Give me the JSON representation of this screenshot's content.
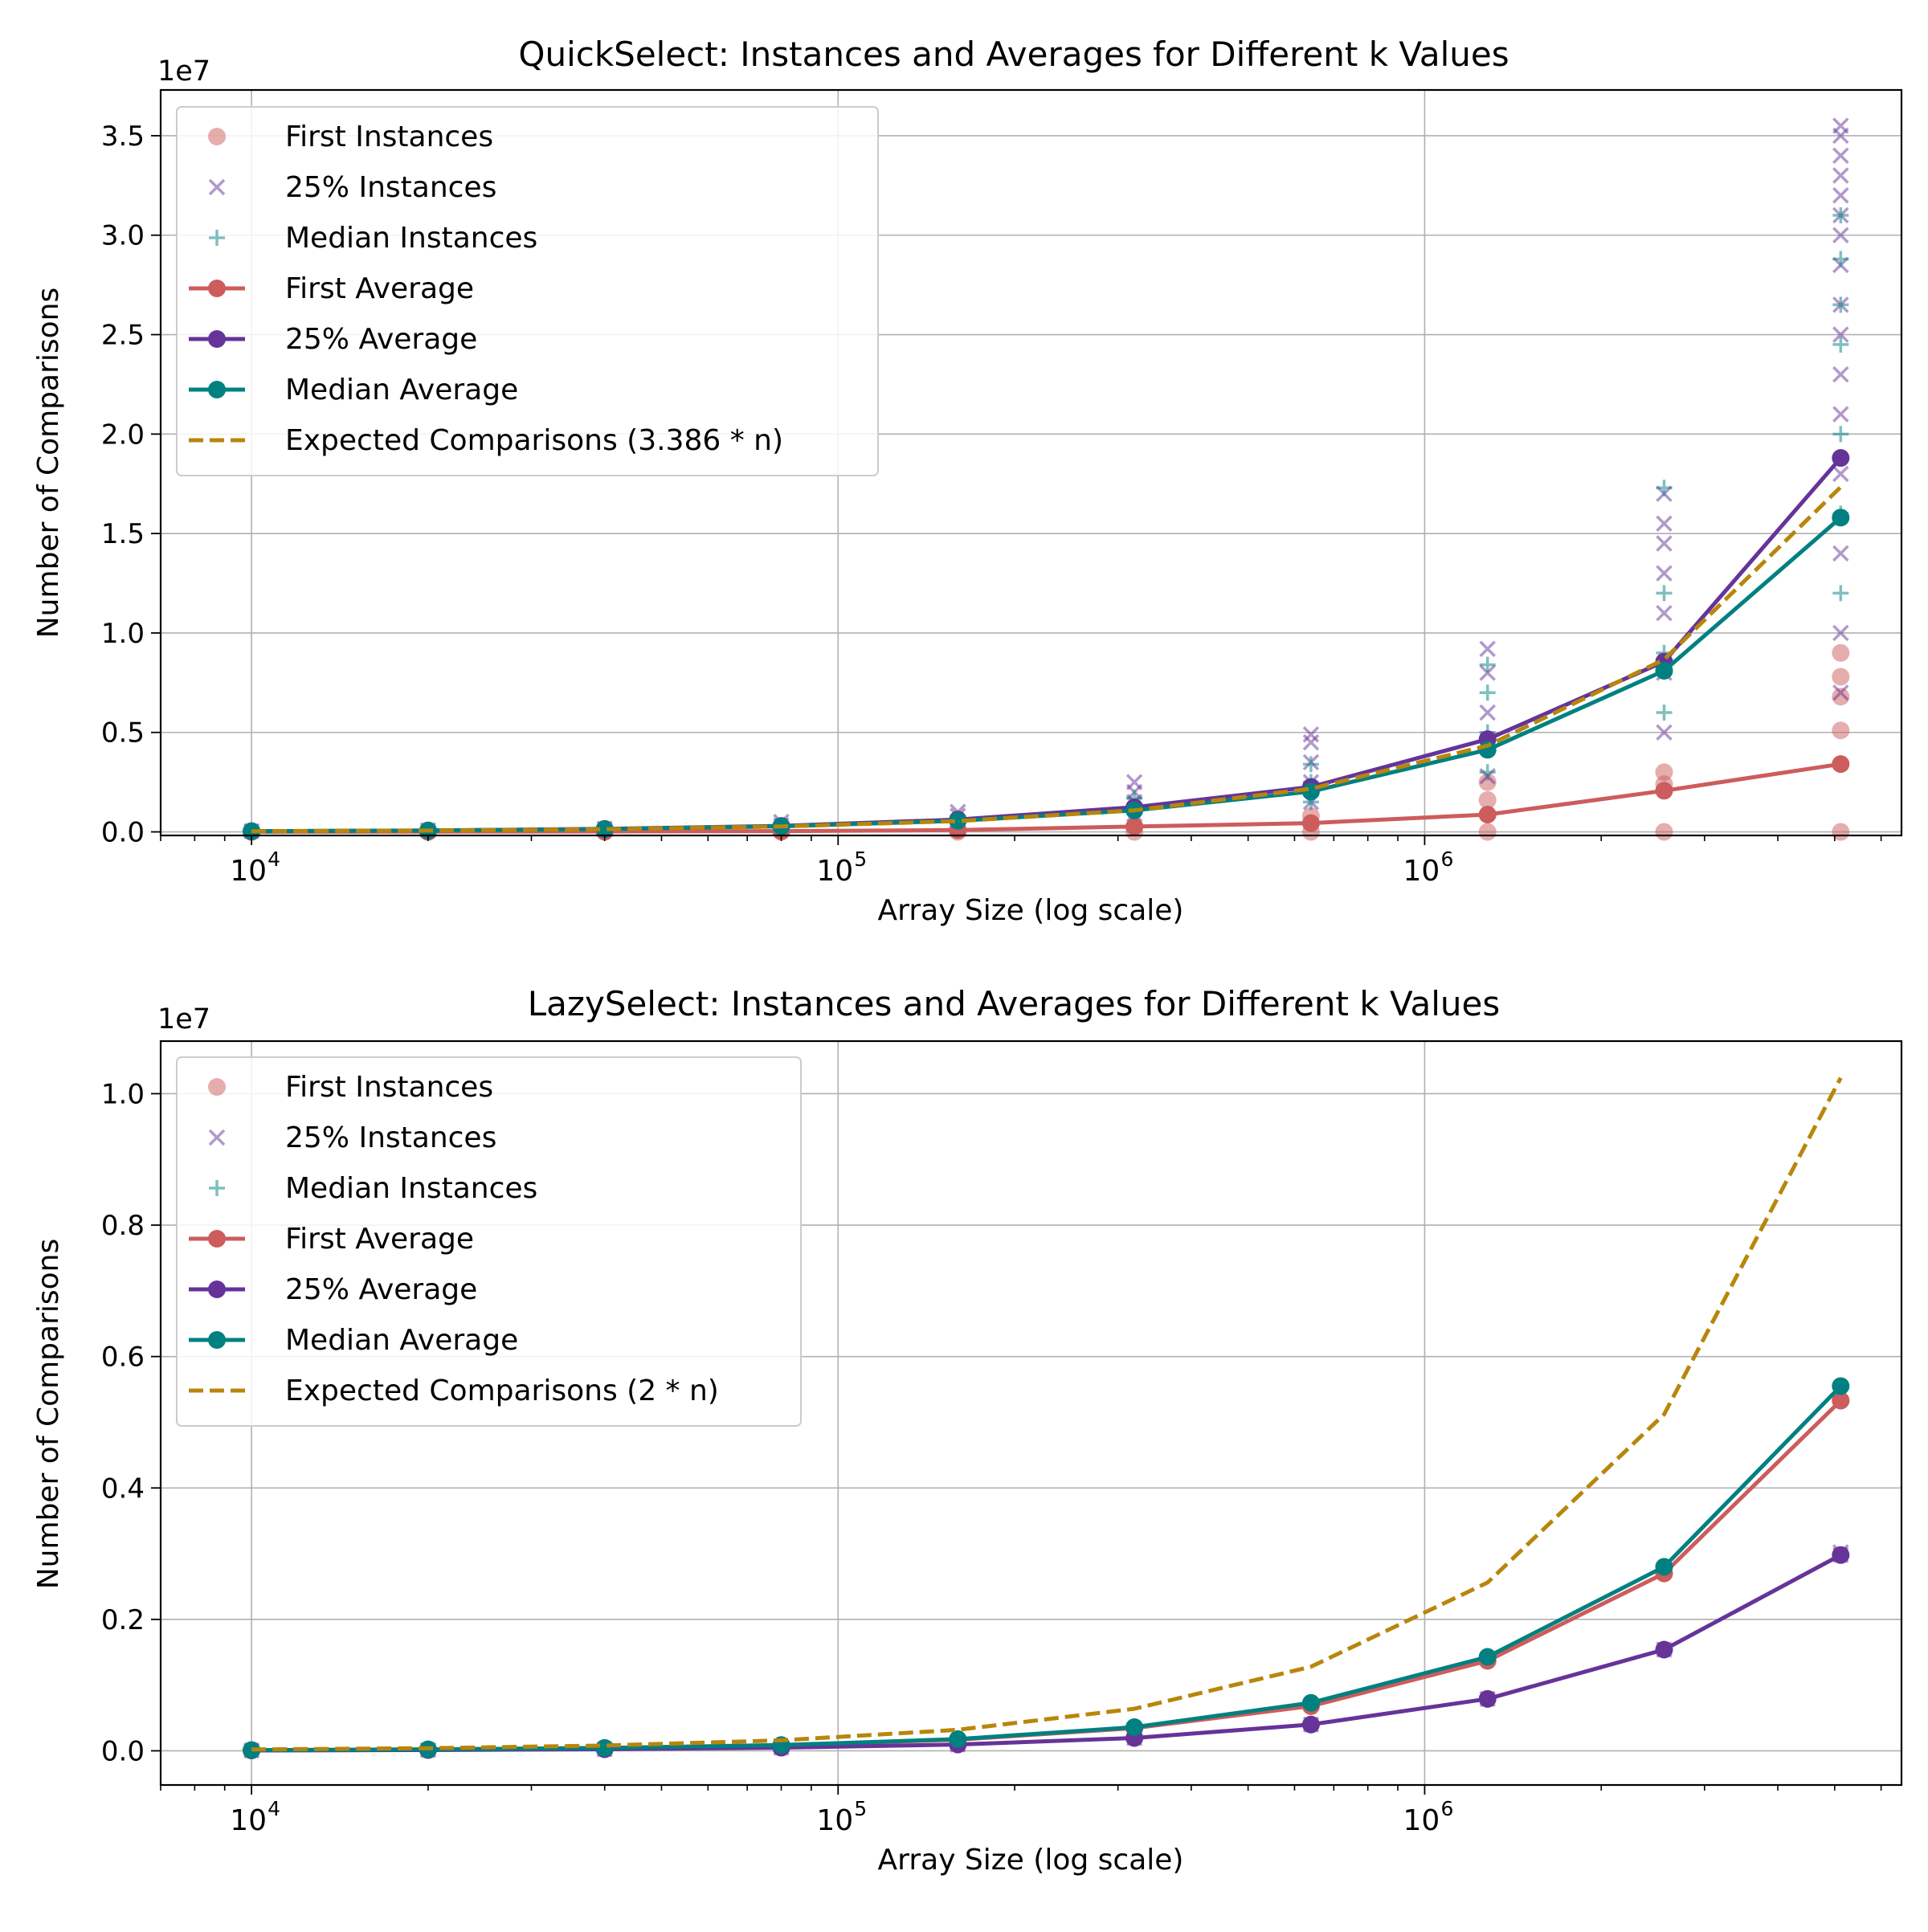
{
  "chart_data": [
    {
      "type": "line",
      "title": "QuickSelect: Instances and Averages for Different k Values",
      "xlabel": "Array Size (log scale)",
      "ylabel": "Number of Comparisons",
      "offset_label": "1e7",
      "xscale": "log",
      "xlim": [
        7000,
        6500000
      ],
      "ylim": [
        -180000,
        37300000
      ],
      "x_ticks": [
        {
          "value": 10000,
          "base": "10",
          "exp": "4"
        },
        {
          "value": 100000,
          "base": "10",
          "exp": "5"
        },
        {
          "value": 1000000,
          "base": "10",
          "exp": "6"
        }
      ],
      "y_ticks": [
        {
          "value": 0,
          "label": "0.0"
        },
        {
          "value": 5000000,
          "label": "0.5"
        },
        {
          "value": 10000000,
          "label": "1.0"
        },
        {
          "value": 15000000,
          "label": "1.5"
        },
        {
          "value": 20000000,
          "label": "2.0"
        },
        {
          "value": 25000000,
          "label": "2.5"
        },
        {
          "value": 30000000,
          "label": "3.0"
        },
        {
          "value": 35000000,
          "label": "3.5"
        }
      ],
      "grid": true,
      "legend_position": "upper-left",
      "x": [
        10000,
        20000,
        40000,
        80000,
        160000,
        320000,
        640000,
        1280000,
        2560000,
        5120000
      ],
      "series": [
        {
          "name": "First Average",
          "color": "#cd5c5c",
          "style": "solid",
          "marker": "circle",
          "values": [
            5000,
            10000,
            20000,
            40000,
            90000,
            270000,
            440000,
            870000,
            2070000,
            3410000
          ]
        },
        {
          "name": "25% Average",
          "color": "#663399",
          "style": "solid",
          "marker": "circle",
          "values": [
            36000,
            72000,
            150000,
            300000,
            620000,
            1240000,
            2260000,
            4660000,
            8560000,
            18800000
          ]
        },
        {
          "name": "Median Average",
          "color": "#008080",
          "style": "solid",
          "marker": "circle",
          "values": [
            34000,
            68000,
            140000,
            280000,
            560000,
            1080000,
            2030000,
            4130000,
            8100000,
            15800000
          ]
        },
        {
          "name": "Expected Comparisons (3.386 * n)",
          "color": "#b8860b",
          "style": "dashed",
          "marker": "none",
          "values": [
            33860,
            67720,
            135440,
            270880,
            541760,
            1083520,
            2167040,
            4334080,
            8668160,
            17336320
          ]
        }
      ],
      "instances": [
        {
          "name": "First Instances",
          "color": "#cd5c5c",
          "marker": "circle",
          "points": [
            [
              10000,
              0
            ],
            [
              20000,
              0
            ],
            [
              40000,
              0
            ],
            [
              80000,
              0
            ],
            [
              160000,
              0
            ],
            [
              320000,
              0
            ],
            [
              640000,
              0
            ],
            [
              640000,
              800000
            ],
            [
              1280000,
              0
            ],
            [
              1280000,
              1600000
            ],
            [
              1280000,
              2500000
            ],
            [
              2560000,
              0
            ],
            [
              2560000,
              2400000
            ],
            [
              2560000,
              3000000
            ],
            [
              5120000,
              0
            ],
            [
              5120000,
              5100000
            ],
            [
              5120000,
              6800000
            ],
            [
              5120000,
              7800000
            ],
            [
              5120000,
              9000000
            ]
          ]
        },
        {
          "name": "25% Instances",
          "color": "#663399",
          "marker": "x",
          "points": [
            [
              10000,
              40000
            ],
            [
              20000,
              80000
            ],
            [
              40000,
              160000
            ],
            [
              80000,
              320000
            ],
            [
              80000,
              500000
            ],
            [
              160000,
              500000
            ],
            [
              160000,
              800000
            ],
            [
              160000,
              1000000
            ],
            [
              320000,
              900000
            ],
            [
              320000,
              1500000
            ],
            [
              320000,
              2000000
            ],
            [
              320000,
              2500000
            ],
            [
              640000,
              1500000
            ],
            [
              640000,
              2500000
            ],
            [
              640000,
              3500000
            ],
            [
              640000,
              4500000
            ],
            [
              640000,
              4900000
            ],
            [
              1280000,
              2800000
            ],
            [
              1280000,
              4500000
            ],
            [
              1280000,
              6000000
            ],
            [
              1280000,
              8000000
            ],
            [
              1280000,
              9200000
            ],
            [
              2560000,
              5000000
            ],
            [
              2560000,
              8000000
            ],
            [
              2560000,
              11000000
            ],
            [
              2560000,
              13000000
            ],
            [
              2560000,
              14500000
            ],
            [
              2560000,
              15500000
            ],
            [
              2560000,
              17000000
            ],
            [
              5120000,
              7000000
            ],
            [
              5120000,
              10000000
            ],
            [
              5120000,
              14000000
            ],
            [
              5120000,
              18000000
            ],
            [
              5120000,
              21000000
            ],
            [
              5120000,
              23000000
            ],
            [
              5120000,
              25000000
            ],
            [
              5120000,
              26500000
            ],
            [
              5120000,
              28500000
            ],
            [
              5120000,
              30000000
            ],
            [
              5120000,
              31000000
            ],
            [
              5120000,
              32000000
            ],
            [
              5120000,
              33000000
            ],
            [
              5120000,
              34000000
            ],
            [
              5120000,
              35000000
            ],
            [
              5120000,
              35500000
            ]
          ]
        },
        {
          "name": "Median Instances",
          "color": "#008080",
          "marker": "plus",
          "points": [
            [
              10000,
              35000
            ],
            [
              20000,
              70000
            ],
            [
              40000,
              140000
            ],
            [
              80000,
              280000
            ],
            [
              160000,
              560000
            ],
            [
              320000,
              1100000
            ],
            [
              320000,
              1700000
            ],
            [
              640000,
              1500000
            ],
            [
              640000,
              2500000
            ],
            [
              640000,
              3400000
            ],
            [
              1280000,
              3000000
            ],
            [
              1280000,
              5000000
            ],
            [
              1280000,
              7000000
            ],
            [
              1280000,
              8400000
            ],
            [
              2560000,
              6000000
            ],
            [
              2560000,
              9000000
            ],
            [
              2560000,
              12000000
            ],
            [
              2560000,
              17300000
            ],
            [
              5120000,
              12000000
            ],
            [
              5120000,
              16000000
            ],
            [
              5120000,
              20000000
            ],
            [
              5120000,
              24500000
            ],
            [
              5120000,
              26500000
            ],
            [
              5120000,
              28800000
            ],
            [
              5120000,
              31000000
            ]
          ]
        }
      ],
      "legend": [
        {
          "label": "First Instances",
          "kind": "scatter-circle",
          "color": "#cd5c5c"
        },
        {
          "label": "25% Instances",
          "kind": "scatter-x",
          "color": "#663399"
        },
        {
          "label": "Median Instances",
          "kind": "scatter-plus",
          "color": "#008080"
        },
        {
          "label": "First Average",
          "kind": "line-marker",
          "color": "#cd5c5c"
        },
        {
          "label": "25% Average",
          "kind": "line-marker",
          "color": "#663399"
        },
        {
          "label": "Median Average",
          "kind": "line-marker",
          "color": "#008080"
        },
        {
          "label": "Expected Comparisons (3.386 * n)",
          "kind": "dashed",
          "color": "#b8860b"
        }
      ]
    },
    {
      "type": "line",
      "title": "LazySelect: Instances and Averages for Different k Values",
      "xlabel": "Array Size (log scale)",
      "ylabel": "Number of Comparisons",
      "offset_label": "1e7",
      "xscale": "log",
      "xlim": [
        7000,
        6500000
      ],
      "ylim": [
        -520000,
        10800000
      ],
      "x_ticks": [
        {
          "value": 10000,
          "base": "10",
          "exp": "4"
        },
        {
          "value": 100000,
          "base": "10",
          "exp": "5"
        },
        {
          "value": 1000000,
          "base": "10",
          "exp": "6"
        }
      ],
      "y_ticks": [
        {
          "value": 0,
          "label": "0.0"
        },
        {
          "value": 2000000,
          "label": "0.2"
        },
        {
          "value": 4000000,
          "label": "0.4"
        },
        {
          "value": 6000000,
          "label": "0.6"
        },
        {
          "value": 8000000,
          "label": "0.8"
        },
        {
          "value": 10000000,
          "label": "1.0"
        }
      ],
      "grid": true,
      "legend_position": "upper-left",
      "x": [
        10000,
        20000,
        40000,
        80000,
        160000,
        320000,
        640000,
        1280000,
        2560000,
        5120000
      ],
      "series": [
        {
          "name": "First Average",
          "color": "#cd5c5c",
          "style": "solid",
          "marker": "circle",
          "values": [
            10000,
            21000,
            42000,
            85000,
            170000,
            345000,
            680000,
            1370000,
            2700000,
            5330000
          ]
        },
        {
          "name": "25% Average",
          "color": "#663399",
          "style": "solid",
          "marker": "circle",
          "values": [
            6000,
            12000,
            24000,
            48000,
            96000,
            195000,
            400000,
            790000,
            1540000,
            2980000
          ]
        },
        {
          "name": "Median Average",
          "color": "#008080",
          "style": "solid",
          "marker": "circle",
          "values": [
            11000,
            22000,
            44000,
            88000,
            178000,
            360000,
            730000,
            1430000,
            2800000,
            5550000
          ]
        },
        {
          "name": "Expected Comparisons (2 * n)",
          "color": "#b8860b",
          "style": "dashed",
          "marker": "none",
          "values": [
            20000,
            40000,
            80000,
            160000,
            320000,
            640000,
            1280000,
            2560000,
            5120000,
            10240000
          ]
        }
      ],
      "instances": [
        {
          "name": "First Instances",
          "color": "#cd5c5c",
          "marker": "circle",
          "points": [
            [
              10000,
              10000
            ],
            [
              20000,
              21000
            ],
            [
              40000,
              42000
            ],
            [
              80000,
              85000
            ],
            [
              160000,
              170000
            ],
            [
              320000,
              345000
            ],
            [
              640000,
              680000
            ],
            [
              1280000,
              1370000
            ],
            [
              2560000,
              2700000
            ],
            [
              5120000,
              5330000
            ]
          ]
        },
        {
          "name": "25% Instances",
          "color": "#663399",
          "marker": "x",
          "points": [
            [
              10000,
              6000
            ],
            [
              20000,
              12000
            ],
            [
              40000,
              24000
            ],
            [
              80000,
              48000
            ],
            [
              160000,
              96000
            ],
            [
              320000,
              195000
            ],
            [
              640000,
              400000
            ],
            [
              1280000,
              790000
            ],
            [
              2560000,
              1540000
            ],
            [
              5120000,
              2980000
            ],
            [
              5120000,
              3020000
            ]
          ]
        },
        {
          "name": "Median Instances",
          "color": "#008080",
          "marker": "plus",
          "points": [
            [
              10000,
              11000
            ],
            [
              20000,
              22000
            ],
            [
              40000,
              44000
            ],
            [
              80000,
              88000
            ],
            [
              160000,
              178000
            ],
            [
              320000,
              360000
            ],
            [
              640000,
              730000
            ],
            [
              1280000,
              1430000
            ],
            [
              2560000,
              2800000
            ],
            [
              5120000,
              5550000
            ]
          ]
        }
      ],
      "legend": [
        {
          "label": "First Instances",
          "kind": "scatter-circle",
          "color": "#cd5c5c"
        },
        {
          "label": "25% Instances",
          "kind": "scatter-x",
          "color": "#663399"
        },
        {
          "label": "Median Instances",
          "kind": "scatter-plus",
          "color": "#008080"
        },
        {
          "label": "First Average",
          "kind": "line-marker",
          "color": "#cd5c5c"
        },
        {
          "label": "25% Average",
          "kind": "line-marker",
          "color": "#663399"
        },
        {
          "label": "Median Average",
          "kind": "line-marker",
          "color": "#008080"
        },
        {
          "label": "Expected Comparisons (2 * n)",
          "kind": "dashed",
          "color": "#b8860b"
        }
      ]
    }
  ]
}
